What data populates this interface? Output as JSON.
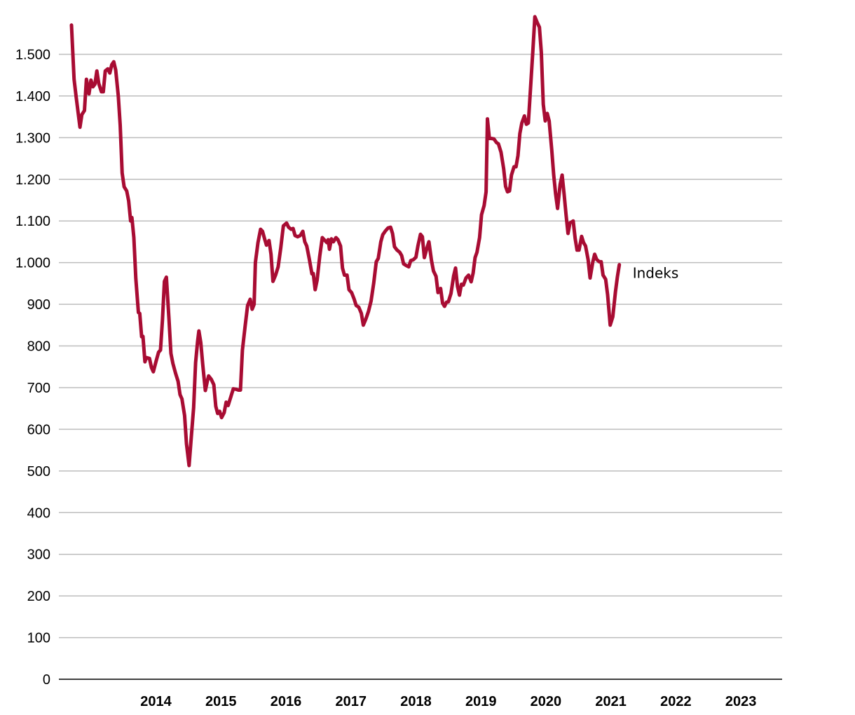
{
  "chart_data": {
    "type": "line",
    "title": "",
    "xlabel": "",
    "ylabel": "",
    "ylim": [
      0,
      1600
    ],
    "xlim": [
      2013.2,
      2023.93
    ],
    "grid": "horizontal",
    "legend": "none",
    "y_ticks": [
      0,
      100,
      200,
      300,
      400,
      500,
      600,
      700,
      800,
      900,
      1000,
      1100,
      1200,
      1300,
      1400,
      1500
    ],
    "y_tick_labels": [
      "0",
      "100",
      "200",
      "300",
      "400",
      "500",
      "600",
      "700",
      "800",
      "900",
      "1.000",
      "1.100",
      "1.200",
      "1.300",
      "1.400",
      "1.500"
    ],
    "x_tick_labels": [
      {
        "year": 2014,
        "label": "2014"
      },
      {
        "year": 2015,
        "label": "2015"
      },
      {
        "year": 2016,
        "label": "2016"
      },
      {
        "year": 2017,
        "label": "2017"
      },
      {
        "year": 2018,
        "label": "2018"
      },
      {
        "year": 2019,
        "label": "2019"
      },
      {
        "year": 2020,
        "label": "2020"
      },
      {
        "year": 2021,
        "label": "2021"
      },
      {
        "year": 2022,
        "label": "2022"
      },
      {
        "year": 2023,
        "label": "2023"
      }
    ],
    "series": [
      {
        "name": "Indeks",
        "color": "#a80c33",
        "points": [
          [
            2013.2,
            1570
          ],
          [
            2013.24,
            1440
          ],
          [
            2013.27,
            1400
          ],
          [
            2013.33,
            1325
          ],
          [
            2013.36,
            1355
          ],
          [
            2013.4,
            1365
          ],
          [
            2013.43,
            1440
          ],
          [
            2013.47,
            1405
          ],
          [
            2013.5,
            1438
          ],
          [
            2013.53,
            1422
          ],
          [
            2013.56,
            1428
          ],
          [
            2013.59,
            1460
          ],
          [
            2013.62,
            1430
          ],
          [
            2013.66,
            1410
          ],
          [
            2013.69,
            1410
          ],
          [
            2013.72,
            1460
          ],
          [
            2013.76,
            1465
          ],
          [
            2013.79,
            1455
          ],
          [
            2013.82,
            1475
          ],
          [
            2013.85,
            1482
          ],
          [
            2013.88,
            1462
          ],
          [
            2013.92,
            1400
          ],
          [
            2013.95,
            1330
          ],
          [
            2013.98,
            1215
          ],
          [
            2014.01,
            1182
          ],
          [
            2014.05,
            1172
          ],
          [
            2014.08,
            1148
          ],
          [
            2014.11,
            1100
          ],
          [
            2014.13,
            1108
          ],
          [
            2014.16,
            1060
          ],
          [
            2014.19,
            962
          ],
          [
            2014.23,
            880
          ],
          [
            2014.25,
            878
          ],
          [
            2014.28,
            822
          ],
          [
            2014.3,
            823
          ],
          [
            2014.33,
            762
          ],
          [
            2014.35,
            772
          ],
          [
            2014.4,
            770
          ],
          [
            2014.43,
            748
          ],
          [
            2014.46,
            738
          ],
          [
            2014.5,
            762
          ],
          [
            2014.54,
            785
          ],
          [
            2014.57,
            790
          ],
          [
            2014.6,
            862
          ],
          [
            2014.63,
            955
          ],
          [
            2014.66,
            965
          ],
          [
            2014.7,
            865
          ],
          [
            2014.73,
            782
          ],
          [
            2014.76,
            758
          ],
          [
            2014.8,
            735
          ],
          [
            2014.84,
            715
          ],
          [
            2014.87,
            683
          ],
          [
            2014.9,
            673
          ],
          [
            2014.94,
            633
          ],
          [
            2014.97,
            565
          ],
          [
            2015.01,
            513
          ],
          [
            2015.05,
            595
          ],
          [
            2015.08,
            652
          ],
          [
            2015.11,
            760
          ],
          [
            2015.14,
            810
          ],
          [
            2015.16,
            836
          ],
          [
            2015.19,
            808
          ],
          [
            2015.22,
            755
          ],
          [
            2015.26,
            693
          ],
          [
            2015.29,
            715
          ],
          [
            2015.31,
            728
          ],
          [
            2015.35,
            720
          ],
          [
            2015.39,
            707
          ],
          [
            2015.42,
            655
          ],
          [
            2015.45,
            638
          ],
          [
            2015.48,
            643
          ],
          [
            2015.51,
            628
          ],
          [
            2015.55,
            640
          ],
          [
            2015.58,
            665
          ],
          [
            2015.61,
            657
          ],
          [
            2015.65,
            677
          ],
          [
            2015.69,
            697
          ],
          [
            2015.73,
            696
          ],
          [
            2015.77,
            694
          ],
          [
            2015.8,
            694
          ],
          [
            2015.83,
            790
          ],
          [
            2015.87,
            845
          ],
          [
            2015.91,
            897
          ],
          [
            2015.95,
            912
          ],
          [
            2015.98,
            888
          ],
          [
            2016.01,
            900
          ],
          [
            2016.03,
            1000
          ],
          [
            2016.07,
            1048
          ],
          [
            2016.11,
            1080
          ],
          [
            2016.14,
            1075
          ],
          [
            2016.17,
            1058
          ],
          [
            2016.2,
            1042
          ],
          [
            2016.24,
            1053
          ],
          [
            2016.27,
            1020
          ],
          [
            2016.3,
            955
          ],
          [
            2016.34,
            970
          ],
          [
            2016.38,
            990
          ],
          [
            2016.42,
            1035
          ],
          [
            2016.46,
            1088
          ],
          [
            2016.51,
            1095
          ],
          [
            2016.54,
            1085
          ],
          [
            2016.58,
            1080
          ],
          [
            2016.61,
            1082
          ],
          [
            2016.64,
            1065
          ],
          [
            2016.68,
            1062
          ],
          [
            2016.72,
            1065
          ],
          [
            2016.76,
            1075
          ],
          [
            2016.79,
            1050
          ],
          [
            2016.82,
            1040
          ],
          [
            2016.86,
            1008
          ],
          [
            2016.9,
            973
          ],
          [
            2016.92,
            974
          ],
          [
            2016.95,
            935
          ],
          [
            2016.98,
            958
          ],
          [
            2017.02,
            1015
          ],
          [
            2017.06,
            1060
          ],
          [
            2017.1,
            1053
          ],
          [
            2017.13,
            1048
          ],
          [
            2017.15,
            1055
          ],
          [
            2017.17,
            1032
          ],
          [
            2017.2,
            1057
          ],
          [
            2017.23,
            1050
          ],
          [
            2017.27,
            1060
          ],
          [
            2017.3,
            1055
          ],
          [
            2017.34,
            1040
          ],
          [
            2017.37,
            987
          ],
          [
            2017.4,
            970
          ],
          [
            2017.44,
            970
          ],
          [
            2017.47,
            935
          ],
          [
            2017.51,
            928
          ],
          [
            2017.55,
            912
          ],
          [
            2017.58,
            897
          ],
          [
            2017.62,
            893
          ],
          [
            2017.66,
            878
          ],
          [
            2017.69,
            850
          ],
          [
            2017.73,
            865
          ],
          [
            2017.77,
            883
          ],
          [
            2017.81,
            908
          ],
          [
            2017.85,
            950
          ],
          [
            2017.89,
            1002
          ],
          [
            2017.92,
            1010
          ],
          [
            2017.96,
            1050
          ],
          [
            2017.99,
            1067
          ],
          [
            2018.03,
            1076
          ],
          [
            2018.07,
            1083
          ],
          [
            2018.11,
            1085
          ],
          [
            2018.14,
            1070
          ],
          [
            2018.17,
            1038
          ],
          [
            2018.21,
            1030
          ],
          [
            2018.25,
            1025
          ],
          [
            2018.28,
            1017
          ],
          [
            2018.31,
            997
          ],
          [
            2018.35,
            993
          ],
          [
            2018.39,
            990
          ],
          [
            2018.42,
            1005
          ],
          [
            2018.46,
            1007
          ],
          [
            2018.5,
            1013
          ],
          [
            2018.53,
            1040
          ],
          [
            2018.57,
            1068
          ],
          [
            2018.6,
            1062
          ],
          [
            2018.63,
            1012
          ],
          [
            2018.67,
            1035
          ],
          [
            2018.7,
            1050
          ],
          [
            2018.74,
            1005
          ],
          [
            2018.77,
            980
          ],
          [
            2018.81,
            967
          ],
          [
            2018.84,
            928
          ],
          [
            2018.88,
            938
          ],
          [
            2018.91,
            903
          ],
          [
            2018.94,
            895
          ],
          [
            2018.97,
            905
          ],
          [
            2019.0,
            906
          ],
          [
            2019.04,
            926
          ],
          [
            2019.08,
            968
          ],
          [
            2019.11,
            987
          ],
          [
            2019.14,
            943
          ],
          [
            2019.17,
            922
          ],
          [
            2019.2,
            948
          ],
          [
            2019.23,
            946
          ],
          [
            2019.27,
            963
          ],
          [
            2019.31,
            970
          ],
          [
            2019.35,
            954
          ],
          [
            2019.38,
            975
          ],
          [
            2019.41,
            1012
          ],
          [
            2019.44,
            1025
          ],
          [
            2019.48,
            1060
          ],
          [
            2019.51,
            1115
          ],
          [
            2019.55,
            1137
          ],
          [
            2019.58,
            1170
          ],
          [
            2019.6,
            1345
          ],
          [
            2019.63,
            1298
          ],
          [
            2019.66,
            1298
          ],
          [
            2019.7,
            1297
          ],
          [
            2019.74,
            1288
          ],
          [
            2019.77,
            1285
          ],
          [
            2019.81,
            1265
          ],
          [
            2019.85,
            1225
          ],
          [
            2019.88,
            1183
          ],
          [
            2019.91,
            1170
          ],
          [
            2019.94,
            1172
          ],
          [
            2019.97,
            1210
          ],
          [
            2020.01,
            1230
          ],
          [
            2020.04,
            1230
          ],
          [
            2020.07,
            1257
          ],
          [
            2020.1,
            1310
          ],
          [
            2020.13,
            1335
          ],
          [
            2020.17,
            1352
          ],
          [
            2020.2,
            1332
          ],
          [
            2020.23,
            1335
          ],
          [
            2020.26,
            1410
          ],
          [
            2020.3,
            1510
          ],
          [
            2020.33,
            1590
          ],
          [
            2020.37,
            1575
          ],
          [
            2020.4,
            1565
          ],
          [
            2020.43,
            1505
          ],
          [
            2020.46,
            1380
          ],
          [
            2020.49,
            1340
          ],
          [
            2020.52,
            1358
          ],
          [
            2020.55,
            1340
          ],
          [
            2020.59,
            1270
          ],
          [
            2020.62,
            1210
          ],
          [
            2020.65,
            1165
          ],
          [
            2020.68,
            1130
          ],
          [
            2020.72,
            1188
          ],
          [
            2020.75,
            1210
          ],
          [
            2020.78,
            1165
          ],
          [
            2020.81,
            1115
          ],
          [
            2020.84,
            1070
          ],
          [
            2020.87,
            1095
          ],
          [
            2020.92,
            1100
          ],
          [
            2020.95,
            1058
          ],
          [
            2020.98,
            1030
          ],
          [
            2021.01,
            1030
          ],
          [
            2021.05,
            1063
          ],
          [
            2021.08,
            1048
          ],
          [
            2021.11,
            1040
          ],
          [
            2021.15,
            1007
          ],
          [
            2021.18,
            963
          ],
          [
            2021.22,
            1000
          ],
          [
            2021.25,
            1020
          ],
          [
            2021.28,
            1008
          ],
          [
            2021.32,
            1002
          ],
          [
            2021.35,
            1002
          ],
          [
            2021.38,
            970
          ],
          [
            2021.42,
            960
          ],
          [
            2021.45,
            923
          ],
          [
            2021.49,
            850
          ],
          [
            2021.53,
            870
          ],
          [
            2021.57,
            930
          ],
          [
            2021.6,
            965
          ],
          [
            2021.63,
            995
          ]
        ]
      }
    ]
  }
}
